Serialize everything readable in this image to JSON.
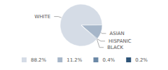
{
  "chart_data": {
    "type": "pie",
    "categories": [
      "WHITE",
      "ASIAN",
      "HISPANIC",
      "BLACK"
    ],
    "values": [
      88.2,
      11.2,
      0.4,
      0.2
    ],
    "value_labels": [
      "88.2%",
      "11.2%",
      "0.4%",
      "0.2%"
    ],
    "colors": [
      "#d5dce6",
      "#a6b6c9",
      "#6c89a7",
      "#2e5478"
    ],
    "legend": "bottom"
  }
}
